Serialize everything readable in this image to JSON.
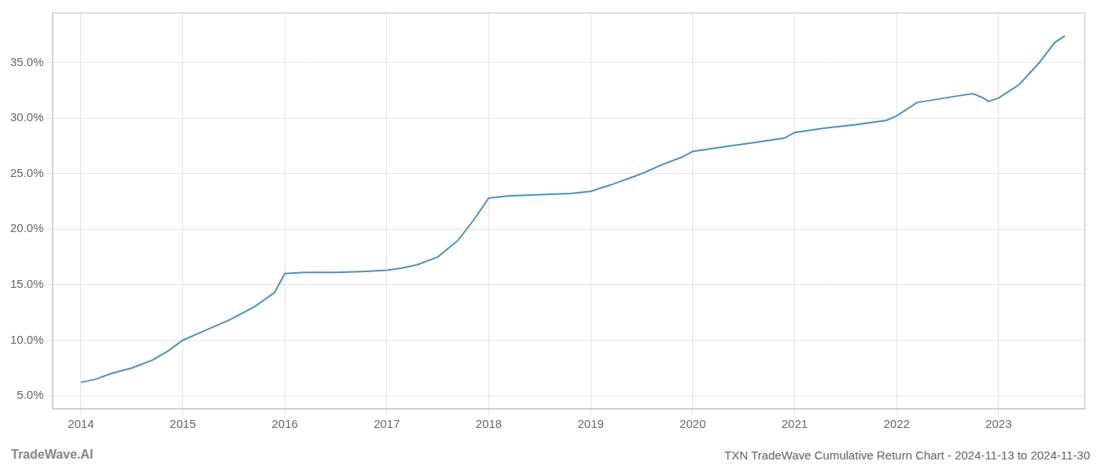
{
  "chart_data": {
    "type": "line",
    "title": "TXN TradeWave Cumulative Return Chart - 2024-11-13 to 2024-11-30",
    "annotations": [
      "TradeWave.AI"
    ],
    "color": "#4a90c4",
    "grid": true,
    "legend": false,
    "x": [
      2014.0,
      2014.15,
      2014.3,
      2014.5,
      2014.7,
      2014.85,
      2015.0,
      2015.2,
      2015.45,
      2015.7,
      2015.9,
      2016.0,
      2016.2,
      2016.5,
      2016.8,
      2017.0,
      2017.15,
      2017.3,
      2017.5,
      2017.7,
      2017.85,
      2018.0,
      2018.2,
      2018.5,
      2018.8,
      2019.0,
      2019.2,
      2019.5,
      2019.7,
      2019.9,
      2020.0,
      2020.3,
      2020.6,
      2020.9,
      2021.0,
      2021.3,
      2021.6,
      2021.9,
      2022.0,
      2022.1,
      2022.2,
      2022.4,
      2022.6,
      2022.75,
      2022.85,
      2022.9,
      2023.0,
      2023.2,
      2023.4,
      2023.55,
      2023.65
    ],
    "values": [
      0.062,
      0.065,
      0.07,
      0.075,
      0.082,
      0.09,
      0.1,
      0.108,
      0.118,
      0.13,
      0.143,
      0.16,
      0.161,
      0.161,
      0.162,
      0.163,
      0.165,
      0.168,
      0.175,
      0.19,
      0.208,
      0.228,
      0.23,
      0.231,
      0.232,
      0.234,
      0.24,
      0.25,
      0.258,
      0.265,
      0.27,
      0.274,
      0.278,
      0.282,
      0.287,
      0.291,
      0.294,
      0.298,
      0.302,
      0.308,
      0.314,
      0.317,
      0.32,
      0.322,
      0.318,
      0.315,
      0.318,
      0.33,
      0.35,
      0.368,
      0.374
    ],
    "xlim": [
      2013.72,
      2023.85
    ],
    "xticks": [
      2014,
      2015,
      2016,
      2017,
      2018,
      2019,
      2020,
      2021,
      2022,
      2023
    ],
    "ylim": [
      0.038,
      0.395
    ],
    "yticks": [
      {
        "value": 0.05,
        "label": "5.0%"
      },
      {
        "value": 0.1,
        "label": "10.0%"
      },
      {
        "value": 0.15,
        "label": "15.0%"
      },
      {
        "value": 0.2,
        "label": "20.0%"
      },
      {
        "value": 0.25,
        "label": "25.0%"
      },
      {
        "value": 0.3,
        "label": "30.0%"
      },
      {
        "value": 0.35,
        "label": "35.0%"
      }
    ]
  }
}
